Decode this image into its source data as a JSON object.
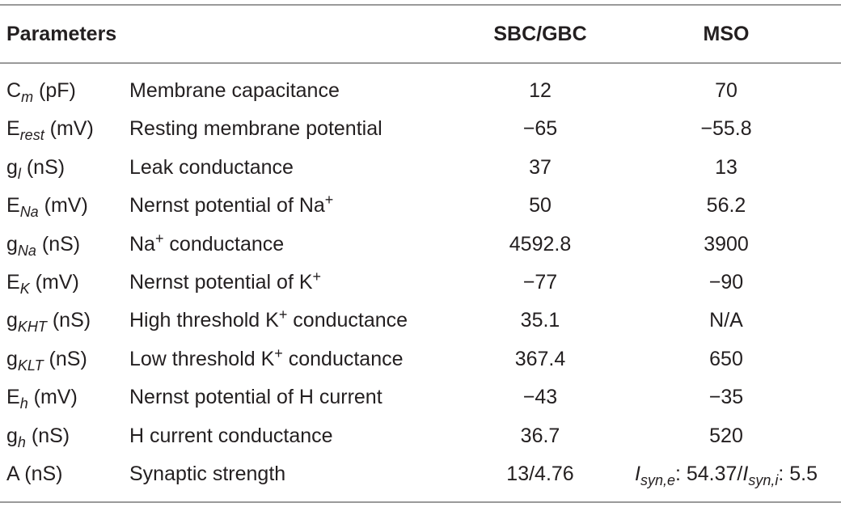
{
  "table": {
    "header": [
      "Parameters",
      "SBC/GBC",
      "MSO"
    ],
    "rows": [
      {
        "param": [
          {
            "text": "C"
          },
          {
            "sub": "m"
          },
          {
            "text": " (pF)"
          }
        ],
        "description": [
          {
            "text": "Membrane capacitance"
          }
        ],
        "sbc": [
          {
            "text": "12"
          }
        ],
        "mso": [
          {
            "text": "70"
          }
        ]
      },
      {
        "param": [
          {
            "text": "E"
          },
          {
            "sub": "rest"
          },
          {
            "text": " (mV)"
          }
        ],
        "description": [
          {
            "text": "Resting membrane potential"
          }
        ],
        "sbc": [
          {
            "text": "−65"
          }
        ],
        "mso": [
          {
            "text": "−55.8"
          }
        ]
      },
      {
        "param": [
          {
            "text": "g"
          },
          {
            "sub": "l"
          },
          {
            "text": " (nS)"
          }
        ],
        "description": [
          {
            "text": "Leak conductance"
          }
        ],
        "sbc": [
          {
            "text": "37"
          }
        ],
        "mso": [
          {
            "text": "13"
          }
        ]
      },
      {
        "param": [
          {
            "text": "E"
          },
          {
            "sub": "Na"
          },
          {
            "text": " (mV)"
          }
        ],
        "description": [
          {
            "text": "Nernst potential of Na"
          },
          {
            "sup": "+"
          }
        ],
        "sbc": [
          {
            "text": "50"
          }
        ],
        "mso": [
          {
            "text": "56.2"
          }
        ]
      },
      {
        "param": [
          {
            "text": "g"
          },
          {
            "sub": "Na"
          },
          {
            "text": " (nS)"
          }
        ],
        "description": [
          {
            "text": "Na"
          },
          {
            "sup": "+"
          },
          {
            "text": " conductance"
          }
        ],
        "sbc": [
          {
            "text": "4592.8"
          }
        ],
        "mso": [
          {
            "text": "3900"
          }
        ]
      },
      {
        "param": [
          {
            "text": "E"
          },
          {
            "sub": "K"
          },
          {
            "text": " (mV)"
          }
        ],
        "description": [
          {
            "text": "Nernst potential of K"
          },
          {
            "sup": "+"
          }
        ],
        "sbc": [
          {
            "text": "−77"
          }
        ],
        "mso": [
          {
            "text": "−90"
          }
        ]
      },
      {
        "param": [
          {
            "text": "g"
          },
          {
            "sub": "KHT"
          },
          {
            "text": " (nS)"
          }
        ],
        "description": [
          {
            "text": "High threshold K"
          },
          {
            "sup": "+"
          },
          {
            "text": " conductance"
          }
        ],
        "sbc": [
          {
            "text": "35.1"
          }
        ],
        "mso": [
          {
            "text": "N/A"
          }
        ]
      },
      {
        "param": [
          {
            "text": "g"
          },
          {
            "sub": "KLT"
          },
          {
            "text": " (nS)"
          }
        ],
        "description": [
          {
            "text": "Low threshold K"
          },
          {
            "sup": "+"
          },
          {
            "text": " conductance"
          }
        ],
        "sbc": [
          {
            "text": "367.4"
          }
        ],
        "mso": [
          {
            "text": "650"
          }
        ]
      },
      {
        "param": [
          {
            "text": "E"
          },
          {
            "sub": "h"
          },
          {
            "text": " (mV)"
          }
        ],
        "description": [
          {
            "text": "Nernst potential of H current"
          }
        ],
        "sbc": [
          {
            "text": "−43"
          }
        ],
        "mso": [
          {
            "text": "−35"
          }
        ]
      },
      {
        "param": [
          {
            "text": "g"
          },
          {
            "sub": "h"
          },
          {
            "text": " (nS)"
          }
        ],
        "description": [
          {
            "text": "H current conductance"
          }
        ],
        "sbc": [
          {
            "text": "36.7"
          }
        ],
        "mso": [
          {
            "text": "520"
          }
        ]
      },
      {
        "param": [
          {
            "text": "A (nS)"
          }
        ],
        "description": [
          {
            "text": "Synaptic strength"
          }
        ],
        "sbc": [
          {
            "text": "13/4.76"
          }
        ],
        "mso": [
          {
            "italic": "I"
          },
          {
            "sub": "syn,e"
          },
          {
            "text": ": 54.37/"
          },
          {
            "italic": "I"
          },
          {
            "sub": "syn,i"
          },
          {
            "text": ": 5.5"
          }
        ]
      }
    ]
  }
}
